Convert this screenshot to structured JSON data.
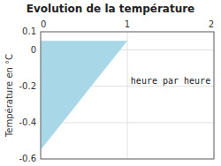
{
  "chart_data": {
    "type": "area",
    "title": "Evolution de la température",
    "y_label": "Température en °C",
    "x": [
      0,
      0,
      1
    ],
    "values": [
      0.05,
      -0.55,
      0.05
    ],
    "color": "#a8d8e8",
    "xlim": [
      0,
      2
    ],
    "ylim": [
      -0.6,
      0.1
    ],
    "xticks": [
      0,
      1,
      2
    ],
    "yticks": [
      -0.6,
      -0.4,
      -0.2,
      0,
      0.1
    ],
    "grid": true,
    "annotations": [
      {
        "text": "heure par heure",
        "x": 1.5,
        "y": -0.17
      }
    ]
  }
}
